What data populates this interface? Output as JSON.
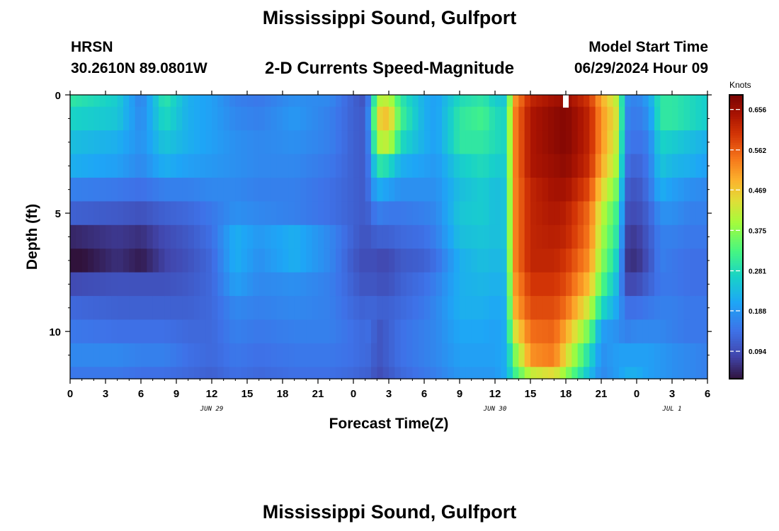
{
  "header": {
    "title": "Mississippi Sound, Gulfport",
    "station": "HRSN",
    "coords": "30.2610N  89.0801W",
    "subtitle": "2-D Currents Speed-Magnitude",
    "start_label": "Model Start Time",
    "start_value": "06/29/2024 Hour 09"
  },
  "footer": {
    "next_title": "Mississippi Sound, Gulfport"
  },
  "chart_data": {
    "type": "heatmap",
    "xlabel": "Forecast Time(Z)",
    "ylabel": "Depth (ft)",
    "x_tick_labels": [
      "0",
      "3",
      "6",
      "9",
      "12",
      "15",
      "18",
      "21",
      "0",
      "3",
      "6",
      "9",
      "12",
      "15",
      "18",
      "21",
      "0",
      "3",
      "6"
    ],
    "day_labels": [
      {
        "text": "JUN 29",
        "hour": 12
      },
      {
        "text": "JUN 30",
        "hour": 36
      },
      {
        "text": "JUL 1",
        "hour": 51
      }
    ],
    "xlim": [
      0,
      54
    ],
    "y_ticks": [
      0,
      5,
      10
    ],
    "ylim": [
      0,
      12
    ],
    "now_hour": 42,
    "colorbar": {
      "units": "Knots",
      "ticks": [
        0.094,
        0.188,
        0.281,
        0.375,
        0.469,
        0.562,
        0.656
      ],
      "tick_labels": [
        "0.094",
        "0.188",
        "0.281",
        "0.375",
        "0.469",
        "0.562",
        "0.656"
      ],
      "range": [
        0.03,
        0.69
      ]
    },
    "depths": [
      0.25,
      1.0,
      2.0,
      3.0,
      4.0,
      5.0,
      6.0,
      7.0,
      8.0,
      9.0,
      10.0,
      11.0,
      11.75
    ],
    "hours": [
      0,
      4,
      6,
      8,
      10,
      12,
      14,
      16,
      19,
      22,
      24,
      25,
      25.5,
      26,
      27,
      28,
      30,
      31,
      33,
      35,
      36,
      37,
      37.5,
      39,
      41,
      42,
      44,
      45,
      46.5,
      47,
      48,
      49,
      50,
      51,
      52.5,
      54
    ],
    "values": [
      [
        0.3,
        0.26,
        0.16,
        0.3,
        0.22,
        0.2,
        0.16,
        0.15,
        0.18,
        0.17,
        0.12,
        0.1,
        0.2,
        0.4,
        0.42,
        0.3,
        0.22,
        0.2,
        0.28,
        0.3,
        0.26,
        0.25,
        0.5,
        0.62,
        0.65,
        0.66,
        0.6,
        0.5,
        0.4,
        0.18,
        0.16,
        0.2,
        0.3,
        0.3,
        0.28,
        0.26
      ],
      [
        0.27,
        0.25,
        0.17,
        0.28,
        0.22,
        0.2,
        0.17,
        0.16,
        0.19,
        0.16,
        0.12,
        0.11,
        0.22,
        0.45,
        0.48,
        0.32,
        0.22,
        0.2,
        0.3,
        0.32,
        0.28,
        0.27,
        0.52,
        0.64,
        0.67,
        0.68,
        0.62,
        0.52,
        0.42,
        0.17,
        0.15,
        0.18,
        0.3,
        0.3,
        0.28,
        0.26
      ],
      [
        0.24,
        0.22,
        0.18,
        0.25,
        0.22,
        0.2,
        0.18,
        0.17,
        0.18,
        0.16,
        0.12,
        0.11,
        0.2,
        0.4,
        0.42,
        0.28,
        0.22,
        0.2,
        0.3,
        0.3,
        0.28,
        0.27,
        0.52,
        0.64,
        0.67,
        0.68,
        0.62,
        0.52,
        0.4,
        0.16,
        0.14,
        0.16,
        0.27,
        0.26,
        0.24,
        0.22
      ],
      [
        0.22,
        0.2,
        0.17,
        0.22,
        0.2,
        0.19,
        0.18,
        0.17,
        0.17,
        0.15,
        0.12,
        0.11,
        0.18,
        0.3,
        0.28,
        0.22,
        0.2,
        0.19,
        0.26,
        0.28,
        0.26,
        0.26,
        0.52,
        0.64,
        0.66,
        0.67,
        0.61,
        0.5,
        0.38,
        0.14,
        0.12,
        0.15,
        0.25,
        0.23,
        0.22,
        0.2
      ],
      [
        0.16,
        0.15,
        0.14,
        0.16,
        0.16,
        0.17,
        0.17,
        0.16,
        0.16,
        0.14,
        0.12,
        0.11,
        0.16,
        0.22,
        0.2,
        0.18,
        0.18,
        0.18,
        0.24,
        0.26,
        0.24,
        0.25,
        0.52,
        0.62,
        0.65,
        0.65,
        0.58,
        0.46,
        0.34,
        0.12,
        0.1,
        0.14,
        0.22,
        0.2,
        0.18,
        0.17
      ],
      [
        0.12,
        0.11,
        0.1,
        0.12,
        0.13,
        0.15,
        0.18,
        0.17,
        0.16,
        0.14,
        0.12,
        0.11,
        0.13,
        0.16,
        0.15,
        0.15,
        0.16,
        0.17,
        0.25,
        0.26,
        0.24,
        0.25,
        0.52,
        0.62,
        0.64,
        0.63,
        0.55,
        0.42,
        0.3,
        0.1,
        0.09,
        0.12,
        0.18,
        0.18,
        0.16,
        0.16
      ],
      [
        0.05,
        0.07,
        0.06,
        0.09,
        0.11,
        0.14,
        0.22,
        0.19,
        0.22,
        0.17,
        0.12,
        0.1,
        0.11,
        0.12,
        0.12,
        0.13,
        0.14,
        0.16,
        0.24,
        0.25,
        0.24,
        0.25,
        0.52,
        0.62,
        0.63,
        0.62,
        0.54,
        0.4,
        0.28,
        0.08,
        0.07,
        0.11,
        0.16,
        0.16,
        0.15,
        0.15
      ],
      [
        0.02,
        0.06,
        0.04,
        0.08,
        0.1,
        0.13,
        0.22,
        0.18,
        0.22,
        0.17,
        0.11,
        0.09,
        0.1,
        0.09,
        0.09,
        0.11,
        0.12,
        0.14,
        0.22,
        0.24,
        0.23,
        0.24,
        0.52,
        0.62,
        0.62,
        0.6,
        0.52,
        0.38,
        0.25,
        0.07,
        0.06,
        0.1,
        0.16,
        0.15,
        0.14,
        0.14
      ],
      [
        0.09,
        0.1,
        0.1,
        0.1,
        0.11,
        0.13,
        0.2,
        0.17,
        0.18,
        0.16,
        0.12,
        0.1,
        0.11,
        0.1,
        0.1,
        0.12,
        0.14,
        0.16,
        0.22,
        0.23,
        0.22,
        0.23,
        0.5,
        0.6,
        0.6,
        0.58,
        0.48,
        0.34,
        0.22,
        0.09,
        0.09,
        0.12,
        0.15,
        0.15,
        0.14,
        0.14
      ],
      [
        0.13,
        0.12,
        0.12,
        0.12,
        0.12,
        0.13,
        0.17,
        0.16,
        0.17,
        0.16,
        0.13,
        0.12,
        0.13,
        0.12,
        0.12,
        0.13,
        0.15,
        0.17,
        0.22,
        0.22,
        0.21,
        0.22,
        0.48,
        0.58,
        0.58,
        0.55,
        0.42,
        0.28,
        0.2,
        0.14,
        0.14,
        0.15,
        0.16,
        0.16,
        0.15,
        0.15
      ],
      [
        0.15,
        0.14,
        0.14,
        0.14,
        0.13,
        0.13,
        0.16,
        0.15,
        0.16,
        0.16,
        0.14,
        0.13,
        0.14,
        0.1,
        0.12,
        0.14,
        0.16,
        0.17,
        0.21,
        0.21,
        0.2,
        0.22,
        0.42,
        0.55,
        0.56,
        0.5,
        0.35,
        0.2,
        0.18,
        0.16,
        0.17,
        0.17,
        0.17,
        0.16,
        0.15,
        0.15
      ],
      [
        0.17,
        0.17,
        0.16,
        0.16,
        0.14,
        0.13,
        0.15,
        0.14,
        0.15,
        0.15,
        0.14,
        0.13,
        0.13,
        0.1,
        0.12,
        0.14,
        0.16,
        0.17,
        0.2,
        0.2,
        0.2,
        0.22,
        0.34,
        0.52,
        0.54,
        0.45,
        0.28,
        0.18,
        0.2,
        0.2,
        0.2,
        0.2,
        0.19,
        0.18,
        0.17,
        0.16
      ],
      [
        0.15,
        0.15,
        0.14,
        0.14,
        0.13,
        0.12,
        0.14,
        0.13,
        0.14,
        0.14,
        0.13,
        0.12,
        0.12,
        0.09,
        0.11,
        0.13,
        0.15,
        0.16,
        0.19,
        0.19,
        0.19,
        0.22,
        0.3,
        0.42,
        0.45,
        0.38,
        0.24,
        0.17,
        0.2,
        0.22,
        0.22,
        0.2,
        0.19,
        0.18,
        0.17,
        0.16
      ]
    ]
  }
}
